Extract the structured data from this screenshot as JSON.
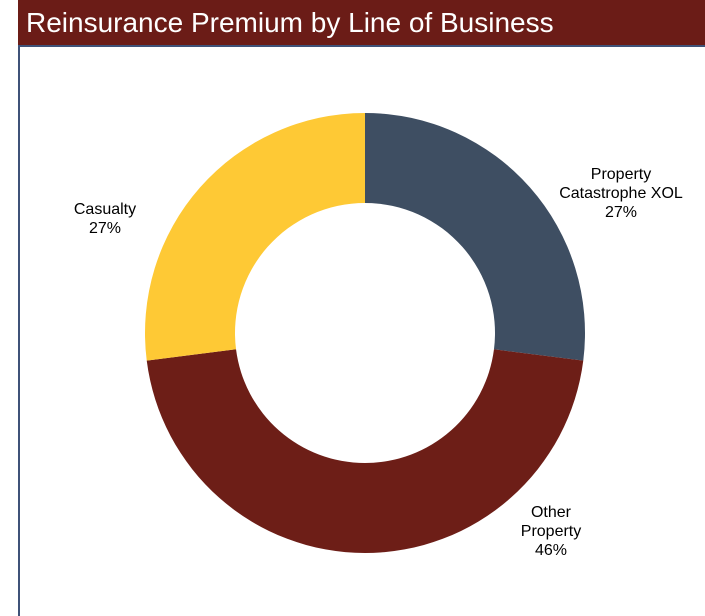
{
  "chart_data": {
    "type": "donut",
    "title": "Reinsurance Premium by Line of Business",
    "categories": [
      "Property Catastrophe XOL",
      "Other Property",
      "Casualty"
    ],
    "values": [
      27,
      46,
      27
    ],
    "value_labels": [
      "27%",
      "46%",
      "27%"
    ],
    "colors": [
      "#3e4e62",
      "#6d1e17",
      "#fec935"
    ]
  }
}
